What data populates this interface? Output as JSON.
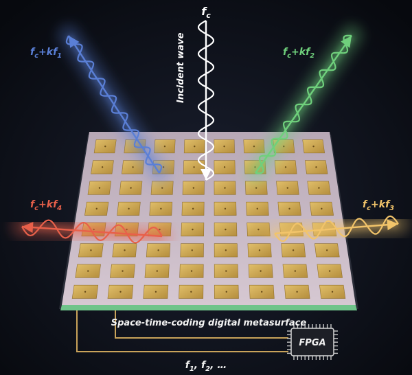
{
  "labels": {
    "fc_base": "f",
    "fc_sub": "c",
    "beam1": {
      "base": "f",
      "sub": "c",
      "plus": "+",
      "k": "k",
      "f": "f",
      "idx": "1"
    },
    "beam2": {
      "base": "f",
      "sub": "c",
      "plus": "+",
      "k": "k",
      "f": "f",
      "idx": "2"
    },
    "beam3": {
      "base": "f",
      "sub": "c",
      "plus": "+",
      "k": "k",
      "f": "f",
      "idx": "3"
    },
    "beam4": {
      "base": "f",
      "sub": "c",
      "plus": "+",
      "k": "k",
      "f": "f",
      "idx": "4"
    },
    "incident": "Incident wave",
    "surface": "Space-time-coding digital metasurface",
    "fpga": "FPGA",
    "freqs": "f",
    "freqs_sub1": "1",
    "freqs_mid": ", f",
    "freqs_sub2": "2",
    "freqs_end": ", …"
  },
  "colors": {
    "beam1": "#5a7fd6",
    "beam2": "#6fd07c",
    "beam3": "#f2c46a",
    "beam4": "#e8604a",
    "incident": "#ffffff",
    "patch": "#c9a455",
    "substrate": "#c8b9c6",
    "background": "#0c0f16"
  },
  "icons": [
    "chip-icon"
  ]
}
